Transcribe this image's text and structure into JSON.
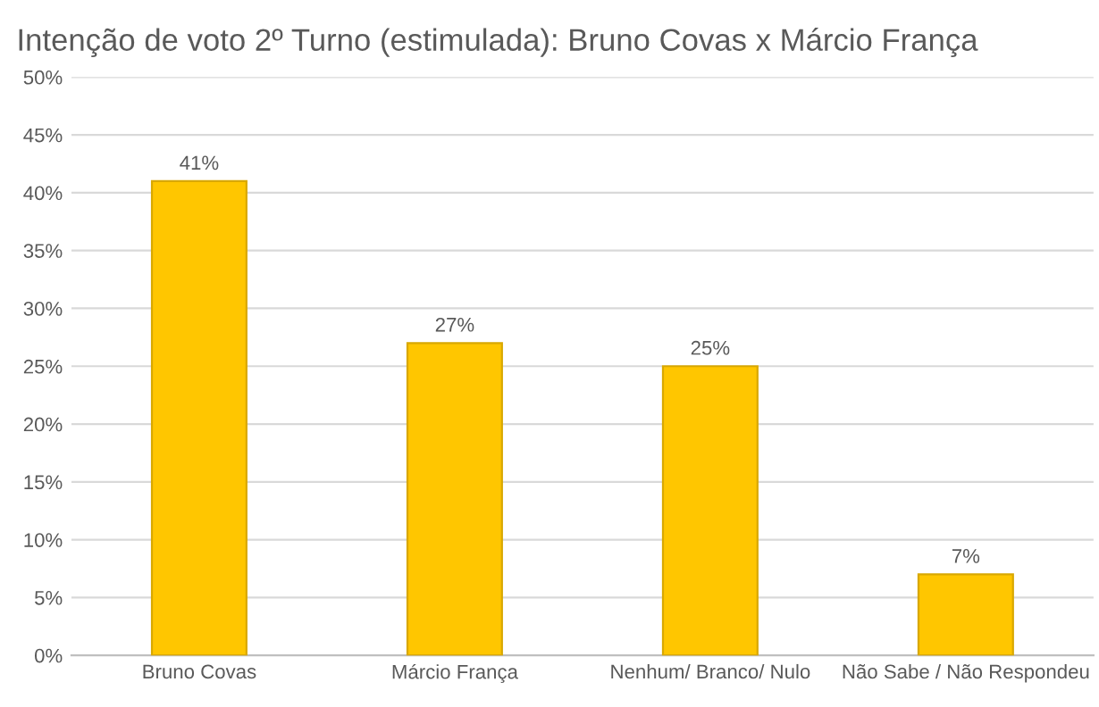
{
  "chart_data": {
    "type": "bar",
    "title": "Intenção de voto 2º Turno (estimulada): Bruno Covas x Márcio França",
    "categories": [
      "Bruno Covas",
      "Márcio França",
      "Nenhum/ Branco/ Nulo",
      "Não Sabe / Não Respondeu"
    ],
    "values": [
      41,
      27,
      25,
      7
    ],
    "value_labels": [
      "41%",
      "27%",
      "25%",
      "7%"
    ],
    "color": "#ffc600",
    "ylim": [
      0,
      50
    ],
    "yticks": [
      {
        "value": 0,
        "label": "0%"
      },
      {
        "value": 5,
        "label": "5%"
      },
      {
        "value": 10,
        "label": "10%"
      },
      {
        "value": 15,
        "label": "15%"
      },
      {
        "value": 20,
        "label": "20%"
      },
      {
        "value": 25,
        "label": "25%"
      },
      {
        "value": 30,
        "label": "30%"
      },
      {
        "value": 35,
        "label": "35%"
      },
      {
        "value": 40,
        "label": "40%"
      },
      {
        "value": 45,
        "label": "45%"
      },
      {
        "value": 50,
        "label": "50%"
      }
    ],
    "grid": "y",
    "legend": false
  }
}
